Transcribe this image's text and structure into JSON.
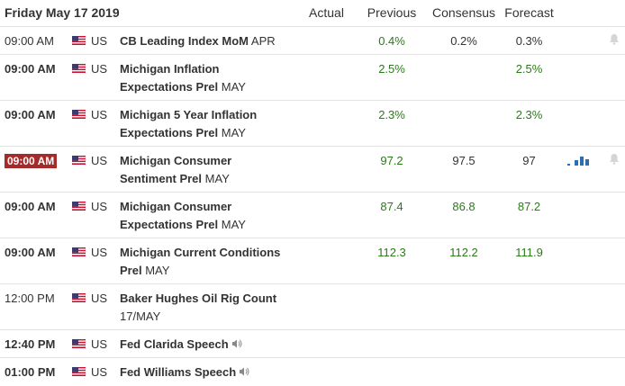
{
  "header": {
    "date": "Friday May 17 2019",
    "columns": [
      "Actual",
      "Previous",
      "Consensus",
      "Forecast"
    ]
  },
  "table": {
    "rows": [
      {
        "time": "09:00 AM",
        "country": "US",
        "event": "CB Leading Index MoM",
        "period": "APR",
        "previous": "0.4%",
        "consensus": "0.2%",
        "forecast": "0.3%"
      },
      {
        "time": "09:00 AM",
        "country": "US",
        "event": "Michigan Inflation Expectations Prel",
        "period": "MAY",
        "previous": "2.5%",
        "forecast": "2.5%"
      },
      {
        "time": "09:00 AM",
        "country": "US",
        "event": "Michigan 5 Year Inflation Expectations Prel",
        "period": "MAY",
        "previous": "2.3%",
        "forecast": "2.3%"
      },
      {
        "time": "09:00 AM",
        "country": "US",
        "event": "Michigan Consumer Sentiment Prel",
        "period": "MAY",
        "previous": "97.2",
        "consensus": "97.5",
        "forecast": "97"
      },
      {
        "time": "09:00 AM",
        "country": "US",
        "event": "Michigan Consumer Expectations Prel",
        "period": "MAY",
        "previous": "87.4",
        "consensus": "86.8",
        "forecast": "87.2"
      },
      {
        "time": "09:00 AM",
        "country": "US",
        "event": "Michigan Current Conditions Prel",
        "period": "MAY",
        "previous": "112.3",
        "consensus": "112.2",
        "forecast": "111.9"
      },
      {
        "time": "12:00 PM",
        "country": "US",
        "event": "Baker Hughes Oil Rig Count",
        "period": "17/MAY"
      },
      {
        "time": "12:40 PM",
        "country": "US",
        "event": "Fed Clarida Speech"
      },
      {
        "time": "01:00 PM",
        "country": "US",
        "event": "Fed Williams Speech"
      }
    ]
  }
}
